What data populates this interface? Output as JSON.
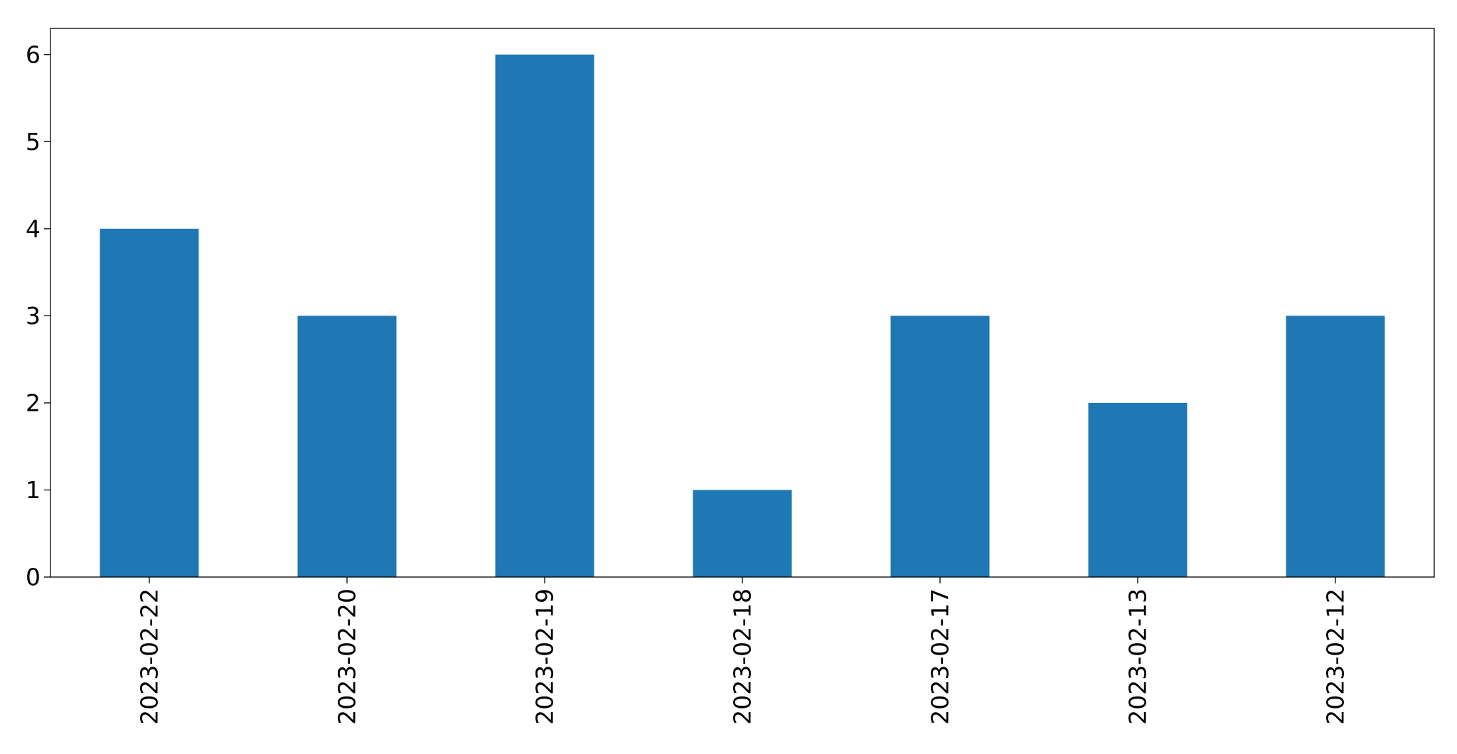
{
  "chart_data": {
    "type": "bar",
    "categories": [
      "2023-02-22",
      "2023-02-20",
      "2023-02-19",
      "2023-02-18",
      "2023-02-17",
      "2023-02-13",
      "2023-02-12"
    ],
    "values": [
      4,
      3,
      6,
      1,
      3,
      2,
      3
    ],
    "title": "",
    "xlabel": "",
    "ylabel": "",
    "ylim": [
      0,
      6.3
    ],
    "yticks": [
      0,
      1,
      2,
      3,
      4,
      5,
      6
    ],
    "grid": false,
    "bar_color": "#1f77b4",
    "x_tick_rotation": "vertical"
  }
}
